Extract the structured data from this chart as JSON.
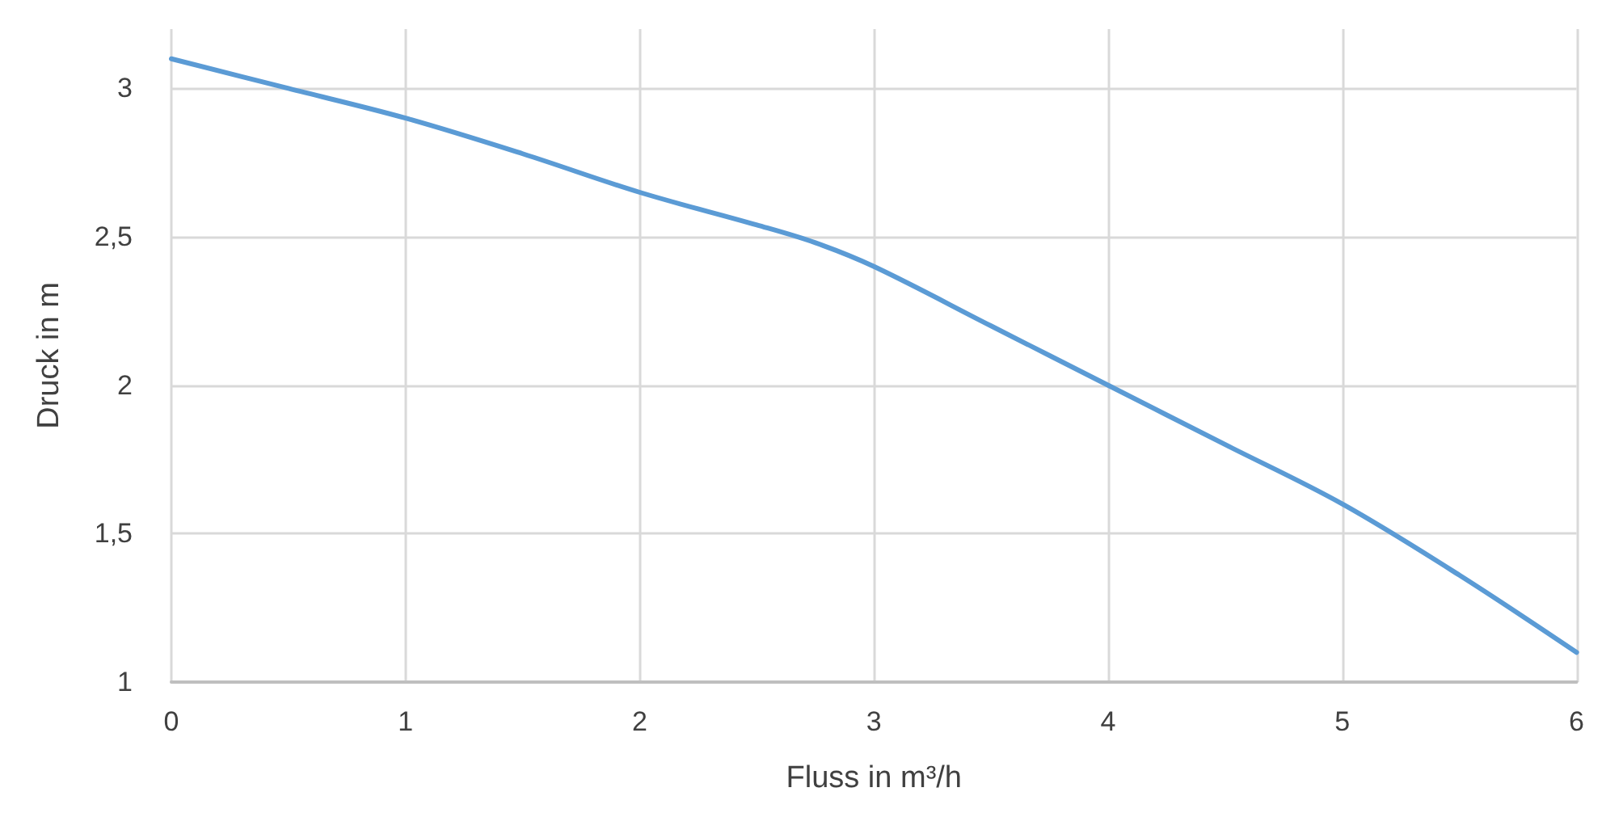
{
  "chart_data": {
    "type": "line",
    "xlabel": "Fluss in m³/h",
    "ylabel": "Druck in m",
    "x": [
      0,
      0.5,
      1,
      1.5,
      2,
      2.5,
      2.75,
      3,
      3.5,
      4,
      4.5,
      5,
      5.5,
      6
    ],
    "series": [
      {
        "color": "#5b9bd5",
        "values": [
          3.1,
          3.0,
          2.9,
          2.78,
          2.65,
          2.54,
          2.48,
          2.4,
          2.2,
          2.0,
          1.8,
          1.6,
          1.36,
          1.1
        ]
      }
    ],
    "xlim": [
      0,
      6
    ],
    "xticks": [
      0,
      1,
      2,
      3,
      4,
      5,
      6
    ],
    "ylim": [
      1,
      3.2
    ],
    "yticks": [
      1,
      {
        "value": 1.5,
        "label": "1,5"
      },
      2,
      {
        "value": 2.5,
        "label": "2,5"
      },
      3
    ],
    "grid": true,
    "marker": "none",
    "line_style": "solid"
  }
}
